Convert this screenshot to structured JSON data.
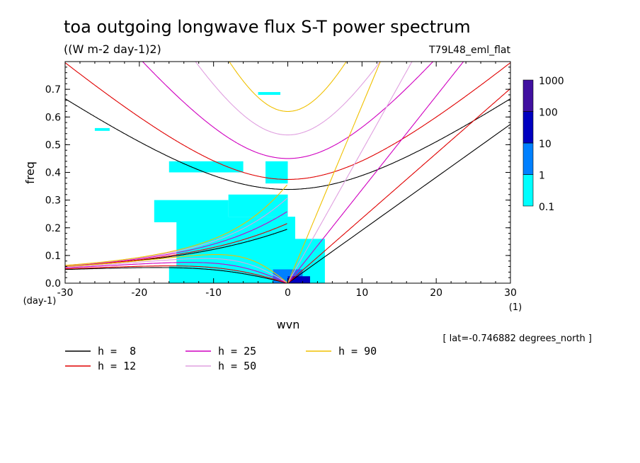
{
  "chart_data": {
    "type": "heatmap",
    "title": "toa outgoing longwave flux S-T power spectrum",
    "subtitle": "((W m-2 day-1)2)",
    "run_label": "T79L48_eml_flat",
    "xlabel": "wvn",
    "ylabel": "freq",
    "x_unit": "(1)",
    "y_unit": "(day-1)",
    "xlim": [
      -30,
      30
    ],
    "ylim": [
      0,
      0.8
    ],
    "x_ticks": [
      -30,
      -20,
      -10,
      0,
      10,
      20,
      30
    ],
    "y_ticks": [
      0.0,
      0.1,
      0.2,
      0.3,
      0.4,
      0.5,
      0.6,
      0.7
    ],
    "x_tick_labels": [
      "-30",
      "-20",
      "-10",
      "0",
      "10",
      "20",
      "30"
    ],
    "y_tick_labels": [
      "0.0",
      "0.1",
      "0.2",
      "0.3",
      "0.4",
      "0.5",
      "0.6",
      "0.7"
    ],
    "footnote": "[ lat=-0.746882 degrees_north ]",
    "colorbar": {
      "levels": [
        "0.1",
        "1",
        "10",
        "100",
        "1000"
      ],
      "colors": [
        "#00ffff",
        "#0080ff",
        "#0000c0",
        "#4010a0"
      ]
    },
    "dispersion_curves": [
      {
        "name": "h =  8",
        "h": 8,
        "color": "#000000"
      },
      {
        "name": "h = 12",
        "h": 12,
        "color": "#e00000"
      },
      {
        "name": "h = 25",
        "h": 25,
        "color": "#d000c0"
      },
      {
        "name": "h = 50",
        "h": 50,
        "color": "#e0a0e0"
      },
      {
        "name": "h = 90",
        "h": 90,
        "color": "#f0c000"
      }
    ],
    "power_regions": [
      {
        "wvn": [
          -16,
          0
        ],
        "freq": [
          0.0,
          0.06
        ],
        "level": "0.1-1"
      },
      {
        "wvn": [
          -15,
          1
        ],
        "freq": [
          0.06,
          0.24
        ],
        "level": "0.1-1"
      },
      {
        "wvn": [
          -8,
          0
        ],
        "freq": [
          0.24,
          0.32
        ],
        "level": "0.1-1"
      },
      {
        "wvn": [
          -18,
          -8
        ],
        "freq": [
          0.22,
          0.3
        ],
        "level": "0.1-1"
      },
      {
        "wvn": [
          0,
          5
        ],
        "freq": [
          0.0,
          0.16
        ],
        "level": "0.1-1"
      },
      {
        "wvn": [
          -3,
          0
        ],
        "freq": [
          0.36,
          0.44
        ],
        "level": "0.1-1"
      },
      {
        "wvn": [
          -16,
          -6
        ],
        "freq": [
          0.4,
          0.44
        ],
        "level": "0.1-1"
      },
      {
        "wvn": [
          -26,
          -24
        ],
        "freq": [
          0.55,
          0.56
        ],
        "level": "0.1-1"
      },
      {
        "wvn": [
          -4,
          -1
        ],
        "freq": [
          0.68,
          0.69
        ],
        "level": "0.1-1"
      },
      {
        "wvn": [
          -2,
          2
        ],
        "freq": [
          0.0,
          0.05
        ],
        "level": "1-10"
      },
      {
        "wvn": [
          0,
          3
        ],
        "freq": [
          0.0,
          0.025
        ],
        "level": "10-100"
      }
    ]
  }
}
